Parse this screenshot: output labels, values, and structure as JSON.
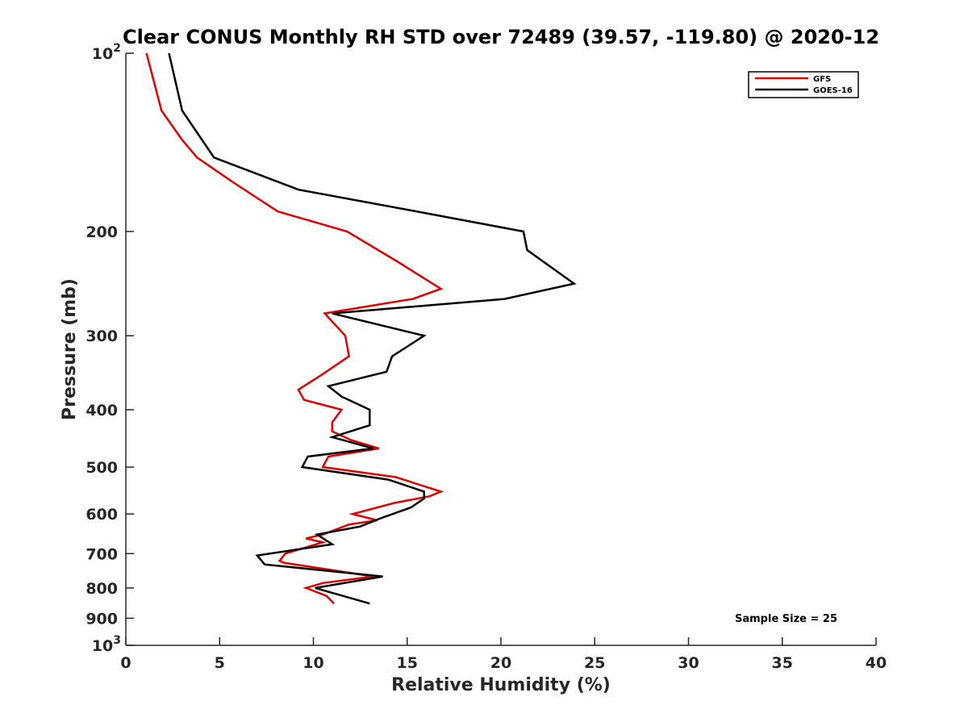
{
  "chart_data": {
    "type": "line",
    "title": "Clear CONUS Monthly RH STD over 72489 (39.57, -119.80) @ 2020-12",
    "xlabel": "Relative Humidity (%)",
    "ylabel": "Pressure (mb)",
    "xlim": [
      0,
      40
    ],
    "ylim": [
      100,
      1000
    ],
    "y_scale": "log",
    "y_direction": "reversed",
    "x_ticks": [
      0,
      5,
      10,
      15,
      20,
      25,
      30,
      35,
      40
    ],
    "x_tick_labels": [
      "0",
      "5",
      "10",
      "15",
      "20",
      "25",
      "30",
      "35",
      "40"
    ],
    "y_ticks": [
      100,
      200,
      300,
      400,
      500,
      600,
      700,
      800,
      900,
      1000
    ],
    "y_tick_labels": [
      {
        "base": "10",
        "exp": "2"
      },
      {
        "base": "200",
        "exp": ""
      },
      {
        "base": "300",
        "exp": ""
      },
      {
        "base": "400",
        "exp": ""
      },
      {
        "base": "500",
        "exp": ""
      },
      {
        "base": "600",
        "exp": ""
      },
      {
        "base": "700",
        "exp": ""
      },
      {
        "base": "800",
        "exp": ""
      },
      {
        "base": "900",
        "exp": ""
      },
      {
        "base": "10",
        "exp": "3"
      }
    ],
    "grid": false,
    "legend_position": "top-right",
    "annotation": "Sample Size = 25",
    "series": [
      {
        "name": "GFS",
        "color": "#dd0000",
        "points": [
          {
            "x": 1.1,
            "p": 100
          },
          {
            "x": 1.9,
            "p": 125
          },
          {
            "x": 3.0,
            "p": 140
          },
          {
            "x": 3.8,
            "p": 150
          },
          {
            "x": 5.7,
            "p": 165
          },
          {
            "x": 8.1,
            "p": 185
          },
          {
            "x": 11.8,
            "p": 200
          },
          {
            "x": 14.5,
            "p": 225
          },
          {
            "x": 16.8,
            "p": 250
          },
          {
            "x": 15.3,
            "p": 260
          },
          {
            "x": 10.6,
            "p": 275
          },
          {
            "x": 11.7,
            "p": 300
          },
          {
            "x": 11.9,
            "p": 325
          },
          {
            "x": 10.4,
            "p": 350
          },
          {
            "x": 9.2,
            "p": 370
          },
          {
            "x": 9.5,
            "p": 385
          },
          {
            "x": 11.5,
            "p": 400
          },
          {
            "x": 11.0,
            "p": 420
          },
          {
            "x": 11.0,
            "p": 435
          },
          {
            "x": 12.0,
            "p": 450
          },
          {
            "x": 13.5,
            "p": 465
          },
          {
            "x": 10.8,
            "p": 480
          },
          {
            "x": 10.5,
            "p": 500
          },
          {
            "x": 14.4,
            "p": 520
          },
          {
            "x": 16.8,
            "p": 550
          },
          {
            "x": 16.2,
            "p": 560
          },
          {
            "x": 14.3,
            "p": 575
          },
          {
            "x": 12.1,
            "p": 600
          },
          {
            "x": 13.4,
            "p": 615
          },
          {
            "x": 11.9,
            "p": 625
          },
          {
            "x": 10.5,
            "p": 650
          },
          {
            "x": 9.6,
            "p": 660
          },
          {
            "x": 10.5,
            "p": 670
          },
          {
            "x": 8.5,
            "p": 700
          },
          {
            "x": 8.2,
            "p": 720
          },
          {
            "x": 8.4,
            "p": 725
          },
          {
            "x": 13.2,
            "p": 765
          },
          {
            "x": 10.5,
            "p": 785
          },
          {
            "x": 9.6,
            "p": 800
          },
          {
            "x": 10.7,
            "p": 825
          },
          {
            "x": 11.1,
            "p": 850
          }
        ]
      },
      {
        "name": "GOES-16",
        "color": "#000000",
        "points": [
          {
            "x": 2.3,
            "p": 100
          },
          {
            "x": 3.0,
            "p": 125
          },
          {
            "x": 4.7,
            "p": 150
          },
          {
            "x": 9.2,
            "p": 170
          },
          {
            "x": 15.5,
            "p": 185
          },
          {
            "x": 21.2,
            "p": 200
          },
          {
            "x": 21.4,
            "p": 215
          },
          {
            "x": 23.9,
            "p": 245
          },
          {
            "x": 20.2,
            "p": 260
          },
          {
            "x": 11.0,
            "p": 275
          },
          {
            "x": 15.9,
            "p": 300
          },
          {
            "x": 14.2,
            "p": 325
          },
          {
            "x": 13.9,
            "p": 345
          },
          {
            "x": 10.8,
            "p": 365
          },
          {
            "x": 11.5,
            "p": 380
          },
          {
            "x": 13.0,
            "p": 400
          },
          {
            "x": 13.0,
            "p": 425
          },
          {
            "x": 11.0,
            "p": 445
          },
          {
            "x": 13.2,
            "p": 465
          },
          {
            "x": 9.7,
            "p": 480
          },
          {
            "x": 9.4,
            "p": 500
          },
          {
            "x": 14.0,
            "p": 525
          },
          {
            "x": 15.9,
            "p": 550
          },
          {
            "x": 15.9,
            "p": 565
          },
          {
            "x": 15.2,
            "p": 585
          },
          {
            "x": 13.6,
            "p": 610
          },
          {
            "x": 12.5,
            "p": 630
          },
          {
            "x": 10.2,
            "p": 650
          },
          {
            "x": 11.0,
            "p": 675
          },
          {
            "x": 7.0,
            "p": 705
          },
          {
            "x": 7.4,
            "p": 730
          },
          {
            "x": 13.7,
            "p": 765
          },
          {
            "x": 10.1,
            "p": 800
          },
          {
            "x": 13.0,
            "p": 850
          }
        ]
      }
    ]
  }
}
